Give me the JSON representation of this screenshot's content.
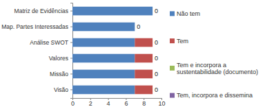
{
  "chart_data": {
    "type": "bar",
    "orientation": "horizontal",
    "stacked": true,
    "data_labels": true,
    "grid": false,
    "legend": "right",
    "categories": [
      "Visão",
      "Missão",
      "Valores",
      "Análise SWOT",
      "Map. Partes Interessadas",
      "Matriz de Evidências"
    ],
    "series": [
      {
        "name": "Não tem",
        "color": "#4f81bd",
        "values": [
          7,
          7,
          7,
          7,
          7,
          9
        ]
      },
      {
        "name": "Tem",
        "color": "#c0504d",
        "values": [
          2,
          2,
          2,
          2,
          null,
          null
        ]
      },
      {
        "name": "Tem e incorpora a sustentabilidade (documento)",
        "color": "#9bbb59",
        "values": [
          0,
          0,
          0,
          0,
          0,
          0
        ]
      },
      {
        "name": "Tem, incorpora e dissemina",
        "color": "#8064a2",
        "values": [
          null,
          null,
          null,
          null,
          null,
          null
        ]
      }
    ],
    "xlim": [
      0,
      10
    ],
    "xticks": [
      0,
      2,
      4,
      6,
      8,
      10
    ]
  }
}
